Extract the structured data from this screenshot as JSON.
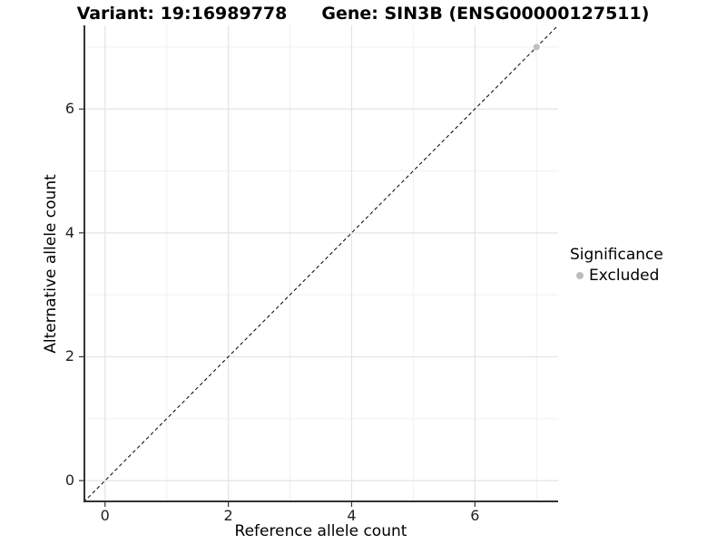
{
  "figure": {
    "title_left": "Variant: 19:16989778",
    "title_right": "Gene: SIN3B (ENSG00000127511)"
  },
  "axes": {
    "x_label": "Reference allele count",
    "y_label": "Alternative allele count"
  },
  "legend": {
    "title": "Significance",
    "items": [
      {
        "label": "Excluded",
        "color": "#bdbdbd",
        "shape": "circle"
      }
    ]
  },
  "chart_data": {
    "type": "scatter",
    "title": "Variant: 19:16989778   Gene: SIN3B (ENSG00000127511)",
    "xlabel": "Reference allele count",
    "ylabel": "Alternative allele count",
    "xlim": [
      -0.35,
      7.35
    ],
    "ylim": [
      -0.35,
      7.35
    ],
    "x_ticks": [
      0,
      2,
      4,
      6
    ],
    "y_ticks": [
      0,
      2,
      4,
      6
    ],
    "x_minor_gridlines": [
      1,
      3,
      5,
      7
    ],
    "y_minor_gridlines": [
      1,
      3,
      5,
      7
    ],
    "grid": "major+minor",
    "legend_position": "right",
    "series": [
      {
        "name": "Excluded",
        "color": "#bdbdbd",
        "marker": "circle",
        "points": [
          {
            "x": 7,
            "y": 7
          }
        ]
      }
    ],
    "reference_line": {
      "kind": "identity y=x",
      "slope": 1,
      "intercept": 0,
      "style": "dashed",
      "color": "#000000"
    }
  },
  "style": {
    "background": "#ffffff",
    "grid_major_color": "#e4e4e4",
    "grid_minor_color": "#f0f0f0",
    "axis_line_color": "#333333",
    "tick_color": "#333333",
    "point_radius": 3.5
  }
}
